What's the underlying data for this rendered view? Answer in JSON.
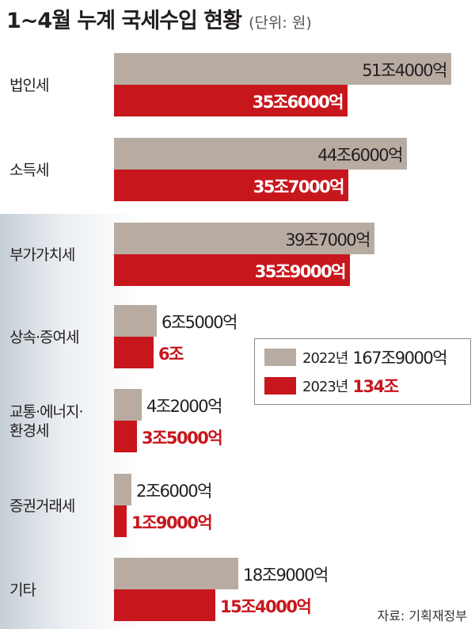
{
  "title": "1~4월 누계 국세수입 현황",
  "unit": "(단위: 원)",
  "source": "자료: 기획재정부",
  "colors": {
    "y2022": "#b8aca2",
    "y2023": "#c8161d",
    "text": "#231f20"
  },
  "legend": [
    {
      "year": "2022년",
      "total": "167조9000억"
    },
    {
      "year": "2023년",
      "total": "134조"
    }
  ],
  "chart_data": {
    "type": "bar",
    "orientation": "horizontal",
    "unit": "원",
    "series": [
      {
        "name": "2022년",
        "values": [
          514000,
          446000,
          397000,
          65000,
          42000,
          26000,
          189000
        ],
        "labels": [
          "51조4000억",
          "44조6000억",
          "39조7000억",
          "6조5000억",
          "4조2000억",
          "2조6000억",
          "18조9000억"
        ]
      },
      {
        "name": "2023년",
        "values": [
          356000,
          357000,
          359000,
          60000,
          35000,
          19000,
          154000
        ],
        "labels": [
          "35조6000억",
          "35조7000억",
          "35조9000억",
          "6조",
          "3조5000억",
          "1조9000억",
          "15조4000억"
        ]
      }
    ],
    "categories": [
      [
        "법인세"
      ],
      [
        "소득세"
      ],
      [
        "부가가치세"
      ],
      [
        "상속·증여세"
      ],
      [
        "교통·에너지·",
        "환경세"
      ],
      [
        "증권거래세"
      ],
      [
        "기타"
      ]
    ]
  }
}
